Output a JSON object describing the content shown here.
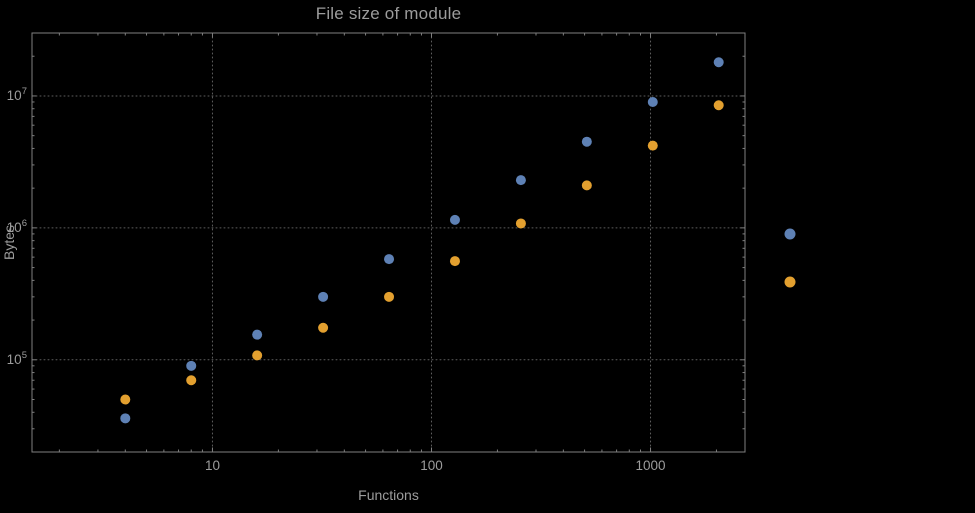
{
  "style": {
    "background": "#000000",
    "text_color": "#9c9c9c",
    "grid_color": "#5e5e5e",
    "frame_color": "#7f7f7f"
  },
  "chart_data": {
    "type": "scatter",
    "title": "File size of module",
    "xlabel": "Functions",
    "ylabel": "Bytes",
    "x_scale": "log",
    "y_scale": "log",
    "xlim": [
      1.5,
      2700
    ],
    "ylim": [
      20000,
      30000000
    ],
    "grid": "dotted",
    "legend_position": "right",
    "legend_marker_labels_visible": false,
    "x_ticks": [
      10,
      100,
      1000
    ],
    "x_tick_labels": [
      "10",
      "100",
      "1000"
    ],
    "y_ticks": [
      100000,
      1000000,
      10000000
    ],
    "y_tick_labels": [
      {
        "base": "10",
        "exp": "5"
      },
      {
        "base": "10",
        "exp": "6"
      },
      {
        "base": "10",
        "exp": "7"
      }
    ],
    "x": [
      4,
      8,
      16,
      32,
      64,
      128,
      256,
      512,
      1024,
      2048
    ],
    "series": [
      {
        "name": "blue",
        "color": "#5E81B5",
        "values": [
          36000,
          90000,
          155000,
          300000,
          580000,
          1150000,
          2300000,
          4500000,
          9000000,
          18000000
        ]
      },
      {
        "name": "orange",
        "color": "#E3A02F",
        "values": [
          50000,
          70000,
          108000,
          175000,
          300000,
          560000,
          1080000,
          2100000,
          4200000,
          8500000
        ]
      }
    ]
  }
}
